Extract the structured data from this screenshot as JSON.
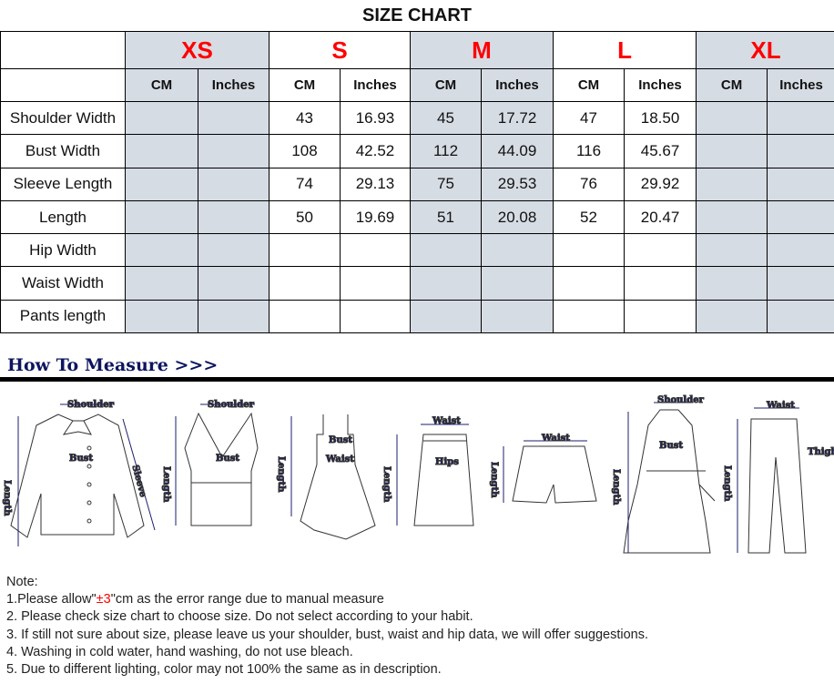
{
  "title": "SIZE CHART",
  "sizes": [
    "XS",
    "S",
    "M",
    "L",
    "XL"
  ],
  "units": {
    "cm": "CM",
    "inches": "Inches"
  },
  "rows": [
    {
      "label": "Shoulder Width",
      "values": [
        "",
        "",
        "43",
        "16.93",
        "45",
        "17.72",
        "47",
        "18.50",
        "",
        ""
      ]
    },
    {
      "label": "Bust Width",
      "values": [
        "",
        "",
        "108",
        "42.52",
        "112",
        "44.09",
        "116",
        "45.67",
        "",
        ""
      ]
    },
    {
      "label": "Sleeve Length",
      "values": [
        "",
        "",
        "74",
        "29.13",
        "75",
        "29.53",
        "76",
        "29.92",
        "",
        ""
      ]
    },
    {
      "label": "Length",
      "values": [
        "",
        "",
        "50",
        "19.69",
        "51",
        "20.08",
        "52",
        "20.47",
        "",
        ""
      ]
    },
    {
      "label": "Hip Width",
      "values": [
        "",
        "",
        "",
        "",
        "",
        "",
        "",
        "",
        "",
        ""
      ]
    },
    {
      "label": "Waist Width",
      "values": [
        "",
        "",
        "",
        "",
        "",
        "",
        "",
        "",
        "",
        ""
      ]
    },
    {
      "label": "Pants length",
      "values": [
        "",
        "",
        "",
        "",
        "",
        "",
        "",
        "",
        "",
        ""
      ]
    }
  ],
  "how_to_measure": {
    "heading": "How To Measure >>>",
    "labels": {
      "shoulder": "Shoulder",
      "bust": "Bust",
      "sleeve": "Sleeve",
      "length": "Length",
      "waist": "Waist",
      "hips": "Hips",
      "thigh": "Thigh"
    }
  },
  "notes": {
    "heading": "Note:",
    "n1_pre": "1.Please allow\"",
    "n1_red": "±3",
    "n1_post": "\"cm as the error range due to manual measure",
    "n2": "2. Please check size chart to choose size. Do not select according to your habit.",
    "n3": "3. If still not sure about size, please leave us your shoulder, bust, waist and hip data, we will offer suggestions.",
    "n4": "4. Washing in cold water, hand washing, do not use bleach.",
    "n5": "5. Due to different lighting, color may not 100% the same as in description."
  },
  "colors": {
    "header_gray": "#d6dce4",
    "size_red": "#ff0000",
    "measure_navy": "#1a1f6e"
  }
}
